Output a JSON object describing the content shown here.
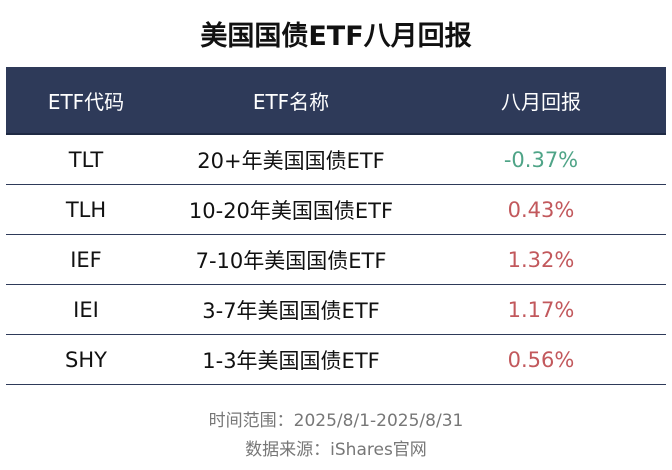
{
  "header": {
    "title": "美国国债ETF八月回报"
  },
  "table": {
    "columns": [
      "ETF代码",
      "ETF名称",
      "八月回报"
    ],
    "rows": [
      {
        "code": "TLT",
        "name": "20+年美国国债ETF",
        "return": "-0.37%",
        "color": "#4fa487"
      },
      {
        "code": "TLH",
        "name": "10-20年美国国债ETF",
        "return": "0.43%",
        "color": "#c2585c"
      },
      {
        "code": "IEF",
        "name": "7-10年美国国债ETF",
        "return": "1.32%",
        "color": "#c2585c"
      },
      {
        "code": "IEI",
        "name": "3-7年美国国债ETF",
        "return": "1.17%",
        "color": "#c2585c"
      },
      {
        "code": "SHY",
        "name": "1-3年美国国债ETF",
        "return": "0.56%",
        "color": "#c2585c"
      }
    ]
  },
  "footer": {
    "period": "时间范围：2025/8/1-2025/8/31",
    "source": "数据来源：iShares官网"
  }
}
